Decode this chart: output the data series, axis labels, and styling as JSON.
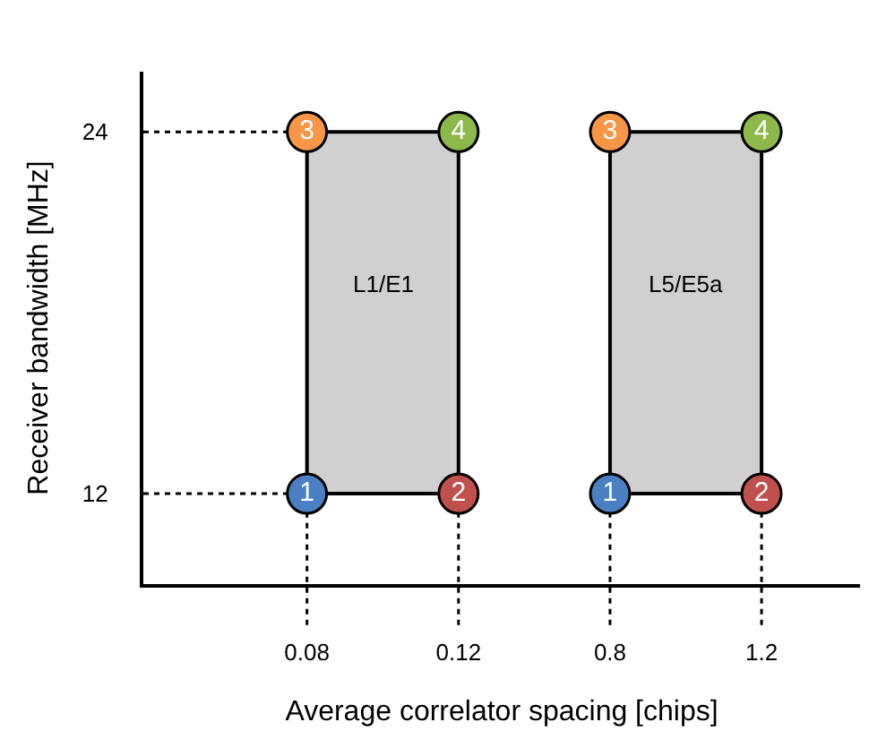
{
  "chart_data": {
    "type": "scatter",
    "xlabel": "Average correlator spacing [chips]",
    "ylabel": "Receiver bandwidth [MHz]",
    "categories": [
      "0.08",
      "0.12",
      "0.8",
      "1.2"
    ],
    "series": [
      {
        "name": "1",
        "x": [
          "0.08",
          "0.8"
        ],
        "values": [
          12,
          12
        ],
        "color": "#4a7fc1"
      },
      {
        "name": "2",
        "x": [
          "0.12",
          "1.2"
        ],
        "values": [
          12,
          12
        ],
        "color": "#c0504d"
      },
      {
        "name": "3",
        "x": [
          "0.08",
          "0.8"
        ],
        "values": [
          24,
          24
        ],
        "color": "#f79646"
      },
      {
        "name": "4",
        "x": [
          "0.12",
          "1.2"
        ],
        "values": [
          24,
          24
        ],
        "color": "#8db84a"
      }
    ],
    "bands": [
      {
        "axis": "x",
        "from": "0.08",
        "to": "0.12",
        "label": "L1/E1",
        "color": "#d0d0d0"
      },
      {
        "axis": "x",
        "from": "0.8",
        "to": "1.2",
        "label": "L5/E5a",
        "color": "#d0d0d0"
      }
    ],
    "ref_lines": [
      {
        "axis": "y",
        "value": 12,
        "line_style": "dotted"
      },
      {
        "axis": "y",
        "value": 24,
        "line_style": "dotted"
      },
      {
        "axis": "x",
        "value": "0.08",
        "line_style": "dotted"
      },
      {
        "axis": "x",
        "value": "0.12",
        "line_style": "dotted"
      },
      {
        "axis": "x",
        "value": "0.8",
        "line_style": "dotted"
      },
      {
        "axis": "x",
        "value": "1.2",
        "line_style": "dotted"
      }
    ],
    "ylim": [
      9,
      26
    ],
    "yticks": [
      12,
      24
    ],
    "marker": "circle",
    "grid": false,
    "legend": false
  }
}
